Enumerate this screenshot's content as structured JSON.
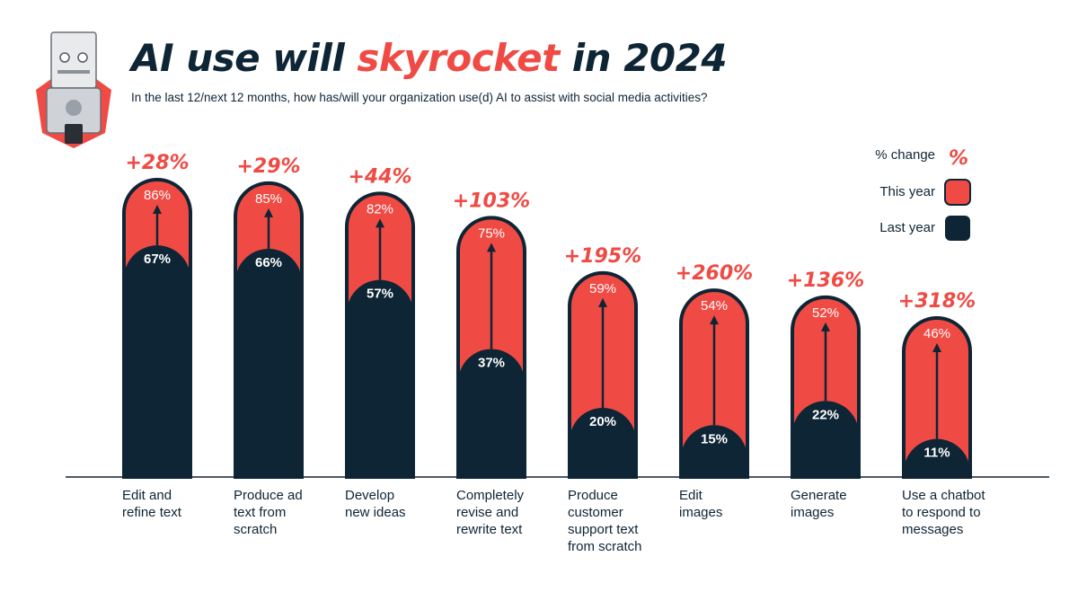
{
  "header": {
    "title_pre": "AI use will ",
    "title_highlight": "skyrocket",
    "title_post": " in 2024",
    "subtitle": "In the last 12/next 12 months, how has/will your organization use(d) AI to assist with social media activities?"
  },
  "legend": {
    "change_label": "% change",
    "change_symbol": "%",
    "this_year_label": "This year",
    "last_year_label": "Last year"
  },
  "colors": {
    "this_year": "#f04a44",
    "last_year": "#0e2535",
    "change": "#f04a44"
  },
  "chart_data": {
    "type": "bar",
    "title": "AI use will skyrocket in 2024",
    "subtitle": "In the last 12/next 12 months, how has/will your organization use(d) AI to assist with social media activities?",
    "categories": [
      [
        "Edit and",
        "refine text"
      ],
      [
        "Produce ad",
        "text from",
        "scratch"
      ],
      [
        "Develop",
        "new ideas"
      ],
      [
        "Completely",
        "revise and",
        "rewrite text"
      ],
      [
        "Produce",
        "customer",
        "support text",
        "from scratch"
      ],
      [
        "Edit",
        "images"
      ],
      [
        "Generate",
        "images"
      ],
      [
        "Use a chatbot",
        "to respond to",
        "messages"
      ]
    ],
    "series": [
      {
        "name": "Last year",
        "values": [
          67,
          66,
          57,
          37,
          20,
          15,
          22,
          11
        ],
        "labels": [
          "67%",
          "66%",
          "57%",
          "37%",
          "20%",
          "15%",
          "22%",
          "11%"
        ]
      },
      {
        "name": "This year",
        "values": [
          86,
          85,
          82,
          75,
          59,
          54,
          52,
          46
        ],
        "labels": [
          "86%",
          "85%",
          "82%",
          "75%",
          "59%",
          "54%",
          "52%",
          "46%"
        ]
      }
    ],
    "change_labels": [
      "+28%",
      "+29%",
      "+44%",
      "+103%",
      "+195%",
      "+260%",
      "+136%",
      "+318%"
    ],
    "ylim": [
      0,
      100
    ]
  }
}
